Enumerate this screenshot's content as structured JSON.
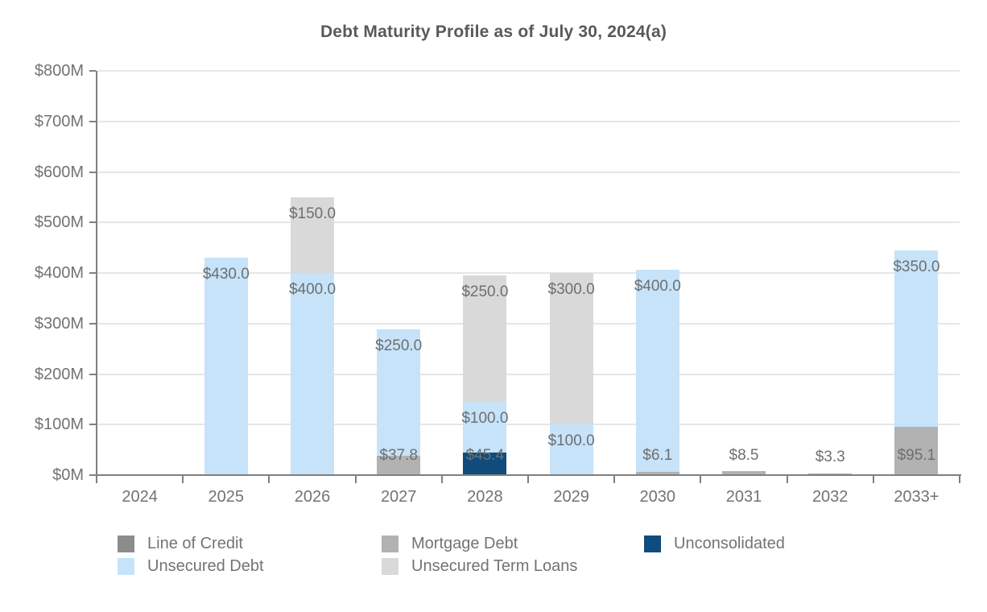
{
  "chart_data": {
    "type": "bar",
    "subtype": "stacked",
    "title": "Debt Maturity Profile as of July 30, 2024(a)",
    "unit": "USD millions",
    "categories": [
      "2024",
      "2025",
      "2026",
      "2027",
      "2028",
      "2029",
      "2030",
      "2031",
      "2032",
      "2033+"
    ],
    "series": [
      {
        "name": "Line of Credit",
        "color": "#8C8C8C",
        "values": [
          0,
          0,
          0,
          0,
          0,
          0,
          0,
          0,
          0,
          0
        ]
      },
      {
        "name": "Mortgage Debt",
        "color": "#B2B2B2",
        "values": [
          0,
          0,
          0,
          37.8,
          0,
          0,
          6.1,
          8.5,
          3.3,
          95.1
        ]
      },
      {
        "name": "Unconsolidated",
        "color": "#0F4C7D",
        "values": [
          0,
          0,
          0,
          0,
          45.4,
          0,
          0,
          0,
          0,
          0
        ]
      },
      {
        "name": "Unsecured Debt",
        "color": "#C6E3F9",
        "values": [
          0,
          430,
          400,
          250,
          100,
          100,
          400,
          0,
          0,
          350
        ]
      },
      {
        "name": "Unsecured Term Loans",
        "color": "#D9D9D9",
        "values": [
          0,
          0,
          150,
          0,
          250,
          300,
          0,
          0,
          0,
          0
        ]
      }
    ],
    "bar_value_labels": {
      "2025": [
        "$430.0"
      ],
      "2026": [
        "$400.0",
        "$150.0"
      ],
      "2027": [
        "$37.8",
        "$250.0"
      ],
      "2028": [
        "$45.4",
        "$100.0",
        "$250.0"
      ],
      "2029": [
        "$100.0",
        "$300.0"
      ],
      "2030": [
        "$6.1",
        "$400.0"
      ],
      "2031": [
        "$8.5"
      ],
      "2032": [
        "$3.3"
      ],
      "2033+": [
        "$95.1",
        "$350.0"
      ]
    },
    "ylim": [
      0,
      800
    ],
    "ytick_step": 100,
    "ytick_labels": [
      "$0M",
      "$100M",
      "$200M",
      "$300M",
      "$400M",
      "$500M",
      "$600M",
      "$700M",
      "$800M"
    ],
    "grid": "horizontal",
    "legend": {
      "position": "bottom",
      "columns": [
        [
          "Line of Credit",
          "Unsecured Debt"
        ],
        [
          "Mortgage Debt",
          "Unsecured Term Loans"
        ],
        [
          "Unconsolidated"
        ]
      ]
    },
    "colors": {
      "background": "#FFFFFF",
      "grid": "#E6E6E6",
      "axis": "#808080",
      "tick_text": "#737373",
      "title_text": "#595959",
      "value_label_text": "#6F6F6F"
    }
  }
}
